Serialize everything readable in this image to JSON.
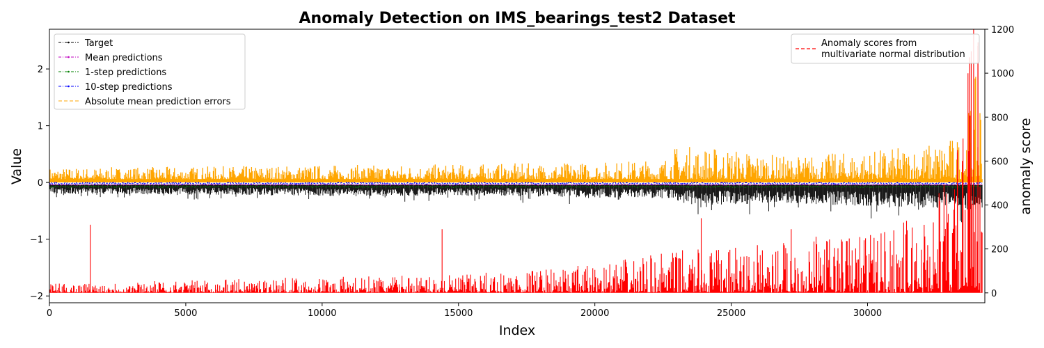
{
  "chart_data": {
    "type": "line",
    "title": "Anomaly Detection on IMS_bearings_test2 Dataset",
    "xlabel": "Index",
    "ylabel": "Value",
    "y2label": "anomaly score",
    "xlim": [
      0,
      34300
    ],
    "ylim": [
      -2.12,
      2.7
    ],
    "y2lim": [
      -45,
      1200
    ],
    "x_ticks": [
      0,
      5000,
      10000,
      15000,
      20000,
      25000,
      30000
    ],
    "y_ticks": [
      -2,
      -1,
      0,
      1,
      2
    ],
    "y2_ticks": [
      0,
      200,
      400,
      600,
      800,
      1000,
      1200
    ],
    "legend_left": {
      "placement": "upper-left",
      "entries": [
        {
          "name": "Target",
          "color": "#000000",
          "style": "dashdot-marker"
        },
        {
          "name": "Mean predictions",
          "color": "#bf00bf",
          "style": "dashdot-marker"
        },
        {
          "name": "1-step predictions",
          "color": "#008000",
          "style": "dashdot-marker"
        },
        {
          "name": "10-step predictions",
          "color": "#0000ff",
          "style": "dashdot-marker"
        },
        {
          "name": "Absolute mean prediction errors",
          "color": "#ffa500",
          "style": "dashed"
        }
      ]
    },
    "legend_right": {
      "placement": "upper-right",
      "entries": [
        {
          "name_lines": [
            "Anomaly scores from",
            "multivariate normal distribution"
          ],
          "color": "#ff0000",
          "style": "dashed"
        }
      ]
    },
    "series_summary": {
      "target_envelope": [
        [
          0,
          -0.2
        ],
        [
          5000,
          -0.22
        ],
        [
          10000,
          -0.25
        ],
        [
          15000,
          -0.24
        ],
        [
          20000,
          -0.28
        ],
        [
          22500,
          -0.3
        ],
        [
          24000,
          -0.45
        ],
        [
          27000,
          -0.4
        ],
        [
          30000,
          -0.48
        ],
        [
          32000,
          -0.5
        ],
        [
          34000,
          -0.55
        ]
      ],
      "abs_error_envelope": [
        [
          0,
          0.2
        ],
        [
          5000,
          0.22
        ],
        [
          10000,
          0.25
        ],
        [
          15000,
          0.26
        ],
        [
          20000,
          0.3
        ],
        [
          22500,
          0.35
        ],
        [
          23000,
          0.6
        ],
        [
          25000,
          0.55
        ],
        [
          27000,
          0.4
        ],
        [
          30000,
          0.5
        ],
        [
          32000,
          0.6
        ],
        [
          33500,
          0.8
        ],
        [
          34000,
          1.9
        ]
      ],
      "anomaly_score_envelope": [
        [
          0,
          25
        ],
        [
          5000,
          35
        ],
        [
          10000,
          45
        ],
        [
          15000,
          50
        ],
        [
          20000,
          80
        ],
        [
          23000,
          120
        ],
        [
          25000,
          130
        ],
        [
          27000,
          150
        ],
        [
          30000,
          180
        ],
        [
          32000,
          220
        ],
        [
          33500,
          450
        ],
        [
          34000,
          1000
        ]
      ],
      "anomaly_score_spikes": [
        [
          1500,
          310
        ],
        [
          14400,
          290
        ],
        [
          23900,
          340
        ],
        [
          27200,
          290
        ],
        [
          33300,
          650
        ],
        [
          33800,
          1100
        ],
        [
          34050,
          1140
        ]
      ]
    }
  }
}
